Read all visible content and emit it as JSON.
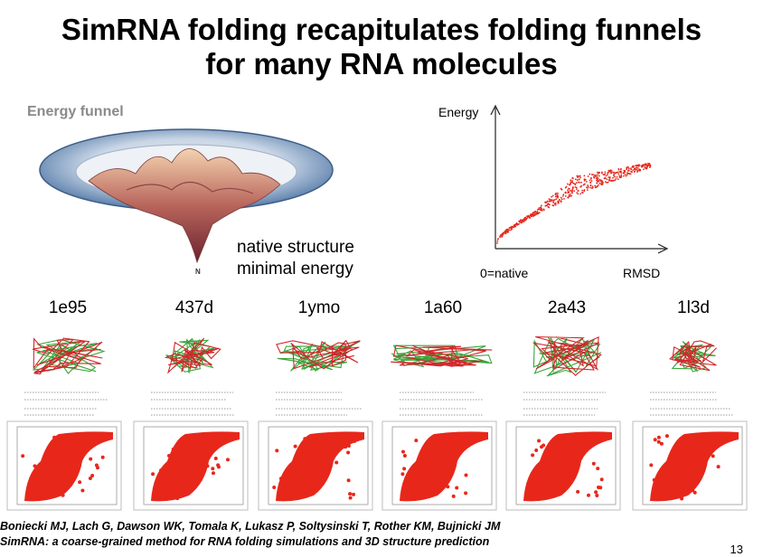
{
  "slide": {
    "title_line1": "SimRNA folding recapitulates folding funnels",
    "title_line2": "for many RNA molecules",
    "funnel_label": "Energy funnel",
    "funnel_bottom_glyph": "N",
    "native_note_line1": "native structure",
    "native_note_line2": "minimal energy",
    "plot": {
      "y_axis_label": "Energy",
      "x_origin_label": "0=native",
      "x_axis_label": "RMSD"
    },
    "panels": [
      {
        "name": "1e95"
      },
      {
        "name": "437d"
      },
      {
        "name": "1ymo"
      },
      {
        "name": "1a60"
      },
      {
        "name": "2a43"
      },
      {
        "name": "1l3d"
      }
    ],
    "citation_line1": "Boniecki MJ, Lach G, Dawson WK, Tomala K, Lukasz P, Soltysinski T, Rother KM, Bujnicki JM",
    "citation_line2": "SimRNA: a coarse-grained method for RNA folding simulations and 3D structure prediction",
    "slide_number": "13"
  },
  "colors": {
    "point_red": "#e8271b",
    "strand_green": "#3aa63a",
    "strand_red": "#d2262b",
    "funnel_rim": "#4a6c96"
  }
}
